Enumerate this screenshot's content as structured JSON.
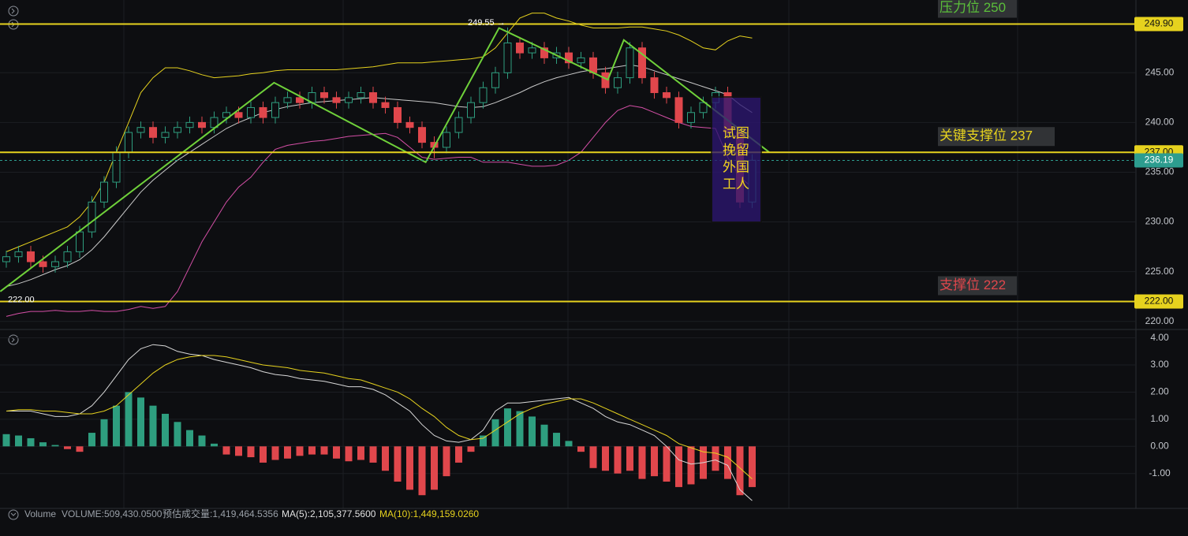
{
  "chart_data": {
    "type": "candlestick",
    "candles": [
      [
        226,
        227.1,
        225.4,
        226.5
      ],
      [
        226.5,
        227.6,
        225.9,
        227
      ],
      [
        227,
        227.6,
        225.4,
        226
      ],
      [
        226,
        226.6,
        224.9,
        225.5
      ],
      [
        225.5,
        226.6,
        224.9,
        226
      ],
      [
        226,
        227.6,
        225.4,
        227
      ],
      [
        227,
        229.6,
        226.4,
        229
      ],
      [
        229,
        232.6,
        228.4,
        232
      ],
      [
        232,
        234.6,
        231.4,
        234
      ],
      [
        234,
        237.6,
        233.4,
        237
      ],
      [
        237,
        239.6,
        236.4,
        239
      ],
      [
        239,
        240.1,
        238.4,
        239.5
      ],
      [
        239.5,
        240.1,
        237.9,
        238.5
      ],
      [
        238.5,
        239.6,
        237.9,
        239
      ],
      [
        239,
        240.1,
        238.4,
        239.5
      ],
      [
        239.5,
        240.6,
        238.9,
        240
      ],
      [
        240,
        240.6,
        238.9,
        239.5
      ],
      [
        239.5,
        241.1,
        238.9,
        240.5
      ],
      [
        240.5,
        241.6,
        239.9,
        241
      ],
      [
        241,
        241.6,
        239.9,
        240.5
      ],
      [
        240.5,
        242.1,
        239.9,
        241.5
      ],
      [
        241.5,
        242.1,
        239.9,
        240.5
      ],
      [
        240.5,
        242.6,
        239.9,
        242
      ],
      [
        242,
        243.1,
        241.4,
        242.5
      ],
      [
        242.5,
        243.1,
        241.4,
        242
      ],
      [
        242,
        243.6,
        241.4,
        243
      ],
      [
        243,
        243.6,
        241.9,
        242.5
      ],
      [
        242.5,
        243.1,
        241.4,
        242
      ],
      [
        242,
        243.1,
        241.4,
        242.5
      ],
      [
        242.5,
        243.6,
        241.9,
        243
      ],
      [
        243,
        243.6,
        241.4,
        242
      ],
      [
        242,
        242.6,
        240.9,
        241.5
      ],
      [
        241.5,
        242.1,
        239.4,
        240
      ],
      [
        240,
        240.6,
        238.9,
        239.5
      ],
      [
        239.5,
        240.1,
        237.4,
        238
      ],
      [
        238,
        238.6,
        236.4,
        237.5
      ],
      [
        237.5,
        239.6,
        236.9,
        239
      ],
      [
        239,
        241.1,
        238.4,
        240.5
      ],
      [
        240.5,
        242.6,
        239.9,
        242
      ],
      [
        242,
        244.1,
        241.4,
        243.5
      ],
      [
        243.5,
        245.6,
        242.9,
        245
      ],
      [
        245,
        249.55,
        244.4,
        248
      ],
      [
        248,
        248.6,
        246.4,
        247
      ],
      [
        247,
        248.1,
        246.4,
        247.5
      ],
      [
        247.5,
        248.1,
        245.9,
        246.5
      ],
      [
        246.5,
        247.6,
        245.9,
        247
      ],
      [
        247,
        247.6,
        245.4,
        246
      ],
      [
        246,
        247.1,
        245.4,
        246.5
      ],
      [
        246.5,
        247.1,
        244.4,
        245
      ],
      [
        245,
        245.6,
        242.9,
        243.5
      ],
      [
        243.5,
        245.1,
        242.9,
        244.5
      ],
      [
        244.5,
        248.1,
        243.9,
        247.5
      ],
      [
        247.5,
        248.1,
        243.9,
        244.5
      ],
      [
        244.5,
        245.1,
        242.4,
        243
      ],
      [
        243,
        243.6,
        241.9,
        242.5
      ],
      [
        242.5,
        243.1,
        239.4,
        240
      ],
      [
        240,
        241.6,
        239.4,
        241
      ],
      [
        241,
        242.6,
        240.4,
        242
      ],
      [
        242,
        243.6,
        241.4,
        243
      ],
      [
        243,
        243.6,
        238.4,
        239
      ],
      [
        239,
        239.6,
        231.4,
        232
      ],
      [
        232,
        236.8,
        231.4,
        236.2
      ]
    ],
    "up_color": "#2e9e7f",
    "down_color": "#e0474c",
    "bands": [
      {
        "color": "#e6d21e",
        "values": [
          227,
          227.5,
          228,
          228.5,
          229,
          229.5,
          230.5,
          232,
          234,
          237,
          240,
          243,
          244.5,
          245.5,
          245.5,
          245.2,
          244.8,
          244.5,
          244.6,
          244.7,
          244.9,
          245,
          245.2,
          245.3,
          245.3,
          245.3,
          245.3,
          245.3,
          245.4,
          245.5,
          245.6,
          245.8,
          246,
          246,
          246,
          246.1,
          246.2,
          246.3,
          246.4,
          246.6,
          247.5,
          249,
          250.5,
          251,
          251,
          250.5,
          250.2,
          249.8,
          249.5,
          249.5,
          249.5,
          249.6,
          249.6,
          249.4,
          249.2,
          248.8,
          248.2,
          247.5,
          247.3,
          248.2,
          248.7,
          248.5
        ]
      },
      {
        "color": "#c9c9c9",
        "values": [
          223.5,
          223.8,
          224.2,
          224.7,
          225.2,
          225.6,
          226.2,
          227.2,
          228.5,
          230,
          231.5,
          233,
          234.2,
          235.2,
          236.2,
          237,
          237.8,
          238.6,
          239.4,
          240,
          240.5,
          241,
          241.3,
          241.6,
          241.8,
          242,
          242.1,
          242.2,
          242.3,
          242.4,
          242.5,
          242.4,
          242.3,
          242.2,
          242.1,
          242,
          241.8,
          241.6,
          241.5,
          241.6,
          242,
          242.5,
          243,
          243.6,
          244.1,
          244.5,
          244.8,
          245.1,
          245.3,
          245.4,
          245.6,
          245.8,
          245.6,
          245.2,
          244.8,
          244.4,
          244,
          243.6,
          243.2,
          242.8,
          241.8,
          241
        ]
      },
      {
        "color": "#d44fa6",
        "values": [
          220.5,
          220.8,
          221,
          221,
          221.1,
          221,
          221,
          221.1,
          221,
          221,
          221.2,
          221.5,
          221.3,
          221.5,
          223,
          225.5,
          228,
          230,
          232,
          233.5,
          234.5,
          236,
          237.3,
          237.7,
          237.9,
          238.1,
          238.2,
          238.4,
          238.6,
          238.7,
          238.8,
          238.9,
          238.5,
          237.5,
          236.5,
          236.3,
          236.4,
          236.5,
          236.5,
          236,
          236,
          236,
          235.8,
          235.6,
          235.6,
          235.7,
          236.2,
          237,
          238.5,
          240,
          241.2,
          241.7,
          241.5,
          241,
          240.5,
          240,
          239.6,
          239.5,
          239.4,
          236.5,
          234.5,
          233.5
        ]
      }
    ],
    "zigzag": {
      "color": "#6fd13a",
      "index": [
        -0.5,
        21.9,
        34.3,
        40.3,
        49.2,
        50.5,
        62.4
      ],
      "prices": [
        223,
        244,
        236,
        249.5,
        244.3,
        248.3,
        237
      ]
    },
    "ylim": [
      219.5,
      252
    ],
    "yticks": [
      {
        "value": 245,
        "label": "245.00"
      },
      {
        "value": 240,
        "label": "240.00"
      },
      {
        "value": 235,
        "label": "235.00"
      },
      {
        "value": 230,
        "label": "230.00"
      },
      {
        "value": 225,
        "label": "225.00"
      },
      {
        "value": 220,
        "label": "220.00"
      }
    ],
    "levels": [
      {
        "value": 249.9,
        "label": "249.90",
        "color": "#e6d21e"
      },
      {
        "value": 237,
        "label": "237.00",
        "color": "#e6d21e"
      },
      {
        "value": 222,
        "label": "222.00",
        "color": "#e6d21e"
      }
    ],
    "last_price": {
      "value": 236.19,
      "label": "236.19",
      "color": "#2d9d8f"
    },
    "level_notes": [
      {
        "text": "压力位 250",
        "value": 249.9,
        "color": "#5bbf3a"
      },
      {
        "text": "关键支撑位 237",
        "value": 237,
        "color": "#e6d21e"
      },
      {
        "text": "支撑位 222",
        "value": 222,
        "color": "#e0474c"
      }
    ],
    "annotation": {
      "lines": [
        "试图",
        "挽留",
        "外国",
        "工人"
      ]
    },
    "peak_label": {
      "text": "249.55 →",
      "value": 249.55
    },
    "low_label": {
      "text": "222.00",
      "value": 222
    },
    "macd": {
      "hist": [
        0.45,
        0.4,
        0.3,
        0.15,
        0.05,
        -0.1,
        -0.2,
        0.5,
        1.0,
        1.5,
        2.0,
        1.8,
        1.5,
        1.2,
        0.9,
        0.6,
        0.4,
        0.1,
        -0.3,
        -0.35,
        -0.4,
        -0.6,
        -0.5,
        -0.45,
        -0.35,
        -0.3,
        -0.3,
        -0.45,
        -0.55,
        -0.5,
        -0.6,
        -0.9,
        -1.3,
        -1.6,
        -1.8,
        -1.6,
        -1.1,
        -0.6,
        -0.2,
        0.4,
        1.0,
        1.4,
        1.3,
        1.1,
        0.8,
        0.5,
        0.2,
        -0.2,
        -0.8,
        -0.9,
        -1.0,
        -0.9,
        -1.2,
        -1.1,
        -1.3,
        -1.5,
        -1.4,
        -1.2,
        -0.9,
        -1.2,
        -1.8,
        -1.5
      ],
      "pos_color": "#2e9e7f",
      "neg_color": "#e0474c",
      "lines": [
        {
          "color": "#d8d8d8",
          "values": [
            1.3,
            1.3,
            1.3,
            1.2,
            1.1,
            1.1,
            1.2,
            1.5,
            2.0,
            2.6,
            3.2,
            3.6,
            3.75,
            3.7,
            3.5,
            3.4,
            3.35,
            3.2,
            3.1,
            3.0,
            2.9,
            2.75,
            2.65,
            2.6,
            2.5,
            2.45,
            2.4,
            2.3,
            2.2,
            2.2,
            2.1,
            1.9,
            1.6,
            1.3,
            0.8,
            0.4,
            0.2,
            0.15,
            0.25,
            0.6,
            1.3,
            1.6,
            1.6,
            1.65,
            1.7,
            1.75,
            1.8,
            1.6,
            1.4,
            1.1,
            0.9,
            0.8,
            0.6,
            0.4,
            0.0,
            -0.5,
            -0.65,
            -0.6,
            -0.5,
            -0.7,
            -1.6,
            -2.0
          ]
        },
        {
          "color": "#e6d21e",
          "values": [
            1.3,
            1.35,
            1.35,
            1.3,
            1.3,
            1.25,
            1.2,
            1.2,
            1.3,
            1.5,
            1.9,
            2.3,
            2.7,
            3.0,
            3.2,
            3.3,
            3.35,
            3.35,
            3.3,
            3.2,
            3.1,
            3.0,
            2.95,
            2.9,
            2.8,
            2.75,
            2.7,
            2.6,
            2.5,
            2.45,
            2.3,
            2.15,
            2.0,
            1.75,
            1.4,
            1.1,
            0.7,
            0.4,
            0.25,
            0.3,
            0.6,
            0.9,
            1.2,
            1.4,
            1.55,
            1.65,
            1.75,
            1.75,
            1.6,
            1.4,
            1.2,
            1.0,
            0.8,
            0.6,
            0.4,
            0.1,
            -0.05,
            -0.2,
            -0.25,
            -0.4,
            -0.8,
            -1.2
          ]
        }
      ],
      "ylim": [
        -2.2,
        4.25
      ],
      "yticks": [
        {
          "value": 4,
          "label": "4.00"
        },
        {
          "value": 3,
          "label": "3.00"
        },
        {
          "value": 2,
          "label": "2.00"
        },
        {
          "value": 1,
          "label": "1.00"
        },
        {
          "value": 0,
          "label": "0.00"
        },
        {
          "value": -1,
          "label": "-1.00"
        }
      ]
    },
    "status": {
      "title": "Volume",
      "volume": "VOLUME:509,430.0500",
      "estimate": "预估成交量:1,419,464.5356",
      "ma5": "MA(5):2,105,377.5600",
      "ma10": "MA(10):1,449,159.0260"
    }
  }
}
